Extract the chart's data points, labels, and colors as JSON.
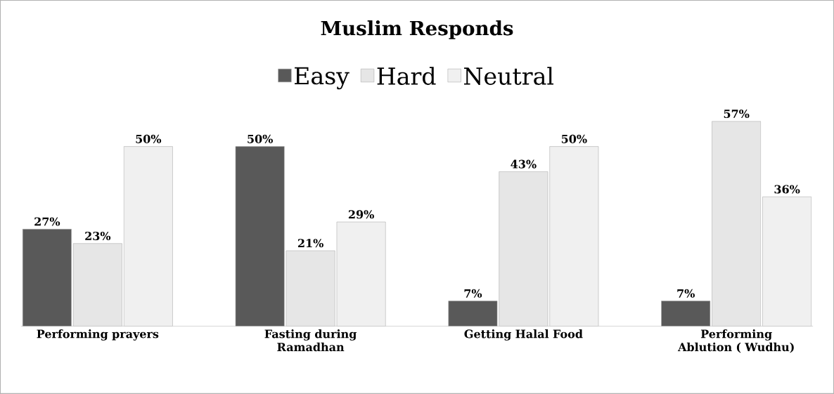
{
  "chart_data": {
    "type": "bar",
    "title": "Muslim Responds",
    "categories": [
      "Performing prayers",
      "Fasting during Ramadhan",
      "Getting Halal Food",
      "Performing Ablution ( Wudhu)"
    ],
    "series": [
      {
        "name": "Easy",
        "color": "#595959",
        "values": [
          27,
          50,
          7,
          7
        ],
        "value_labels": [
          "27%",
          "50%",
          "7%",
          "7%"
        ]
      },
      {
        "name": "Hard",
        "color": "#e6e6e6",
        "values": [
          23,
          21,
          43,
          57
        ],
        "value_labels": [
          "23%",
          "21%",
          "43%",
          "57%"
        ]
      },
      {
        "name": "Neutral",
        "color": "#f0f0f0",
        "values": [
          50,
          29,
          50,
          36
        ],
        "value_labels": [
          "50%",
          "29%",
          "50%",
          "36%"
        ]
      }
    ],
    "legend": "top"
  }
}
